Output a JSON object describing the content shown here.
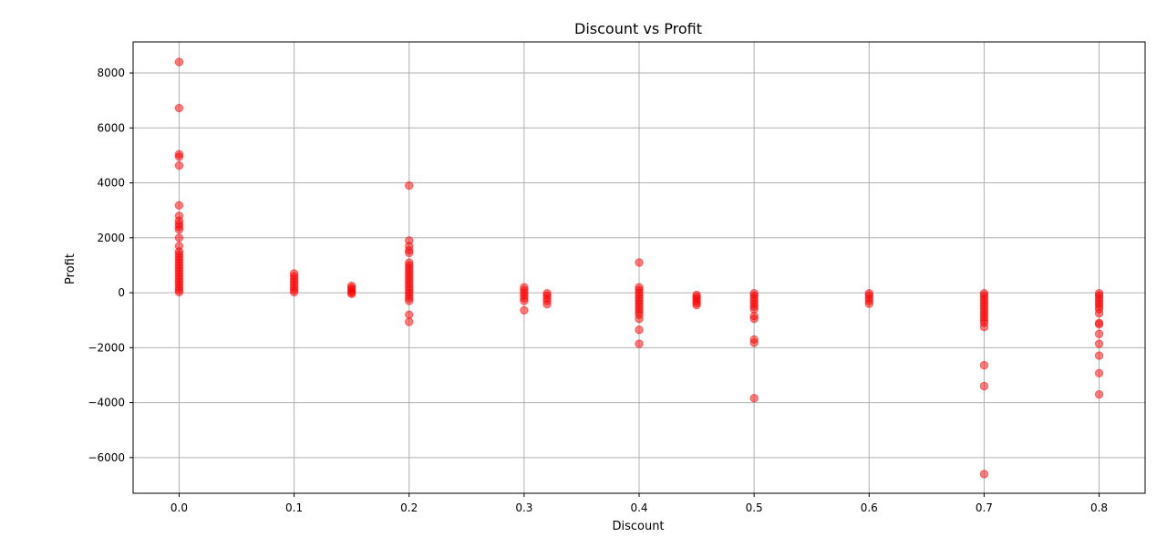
{
  "chart_data": {
    "type": "scatter",
    "title": "Discount vs Profit",
    "xlabel": "Discount",
    "ylabel": "Profit",
    "xlim": [
      -0.04,
      0.84
    ],
    "ylim": [
      -7300,
      9130
    ],
    "x_ticks": [
      0.0,
      0.1,
      0.2,
      0.3,
      0.4,
      0.5,
      0.6,
      0.7,
      0.8
    ],
    "x_tick_labels": [
      "0.0",
      "0.1",
      "0.2",
      "0.3",
      "0.4",
      "0.5",
      "0.6",
      "0.7",
      "0.8"
    ],
    "y_ticks": [
      -6000,
      -4000,
      -2000,
      0,
      2000,
      4000,
      6000,
      8000
    ],
    "y_tick_labels": [
      "−6000",
      "−4000",
      "−2000",
      "0",
      "2000",
      "4000",
      "6000",
      "8000"
    ],
    "grid": true,
    "marker_color": "#ff0000",
    "marker_alpha": 0.5,
    "series": [
      {
        "points": [
          [
            0.0,
            8400
          ],
          [
            0.0,
            6720
          ],
          [
            0.0,
            5040
          ],
          [
            0.0,
            4950
          ],
          [
            0.0,
            4630
          ],
          [
            0.0,
            3180
          ],
          [
            0.0,
            2800
          ],
          [
            0.0,
            2620
          ],
          [
            0.0,
            2500
          ],
          [
            0.0,
            2400
          ],
          [
            0.0,
            2300
          ],
          [
            0.0,
            2000
          ],
          [
            0.0,
            1700
          ],
          [
            0.0,
            1500
          ],
          [
            0.0,
            1400
          ],
          [
            0.0,
            1300
          ],
          [
            0.0,
            1200
          ],
          [
            0.0,
            1100
          ],
          [
            0.0,
            1000
          ],
          [
            0.0,
            900
          ],
          [
            0.0,
            800
          ],
          [
            0.0,
            700
          ],
          [
            0.0,
            600
          ],
          [
            0.0,
            500
          ],
          [
            0.0,
            400
          ],
          [
            0.0,
            300
          ],
          [
            0.0,
            200
          ],
          [
            0.0,
            100
          ],
          [
            0.0,
            20
          ],
          [
            0.1,
            700
          ],
          [
            0.1,
            600
          ],
          [
            0.1,
            500
          ],
          [
            0.1,
            400
          ],
          [
            0.1,
            300
          ],
          [
            0.1,
            200
          ],
          [
            0.1,
            100
          ],
          [
            0.1,
            20
          ],
          [
            0.15,
            250
          ],
          [
            0.15,
            180
          ],
          [
            0.15,
            120
          ],
          [
            0.15,
            60
          ],
          [
            0.15,
            0
          ],
          [
            0.15,
            -40
          ],
          [
            0.2,
            3900
          ],
          [
            0.2,
            1900
          ],
          [
            0.2,
            1700
          ],
          [
            0.2,
            1550
          ],
          [
            0.2,
            1450
          ],
          [
            0.2,
            1100
          ],
          [
            0.2,
            1000
          ],
          [
            0.2,
            900
          ],
          [
            0.2,
            800
          ],
          [
            0.2,
            700
          ],
          [
            0.2,
            600
          ],
          [
            0.2,
            500
          ],
          [
            0.2,
            400
          ],
          [
            0.2,
            300
          ],
          [
            0.2,
            200
          ],
          [
            0.2,
            100
          ],
          [
            0.2,
            0
          ],
          [
            0.2,
            -100
          ],
          [
            0.2,
            -200
          ],
          [
            0.2,
            -300
          ],
          [
            0.2,
            -800
          ],
          [
            0.2,
            -1060
          ],
          [
            0.3,
            200
          ],
          [
            0.3,
            100
          ],
          [
            0.3,
            0
          ],
          [
            0.3,
            -100
          ],
          [
            0.3,
            -200
          ],
          [
            0.3,
            -300
          ],
          [
            0.3,
            -640
          ],
          [
            0.32,
            -20
          ],
          [
            0.32,
            -100
          ],
          [
            0.32,
            -200
          ],
          [
            0.32,
            -300
          ],
          [
            0.32,
            -420
          ],
          [
            0.4,
            1100
          ],
          [
            0.4,
            200
          ],
          [
            0.4,
            100
          ],
          [
            0.4,
            0
          ],
          [
            0.4,
            -100
          ],
          [
            0.4,
            -200
          ],
          [
            0.4,
            -300
          ],
          [
            0.4,
            -400
          ],
          [
            0.4,
            -500
          ],
          [
            0.4,
            -600
          ],
          [
            0.4,
            -700
          ],
          [
            0.4,
            -800
          ],
          [
            0.4,
            -950
          ],
          [
            0.4,
            -1350
          ],
          [
            0.4,
            -1860
          ],
          [
            0.45,
            -80
          ],
          [
            0.45,
            -150
          ],
          [
            0.45,
            -220
          ],
          [
            0.45,
            -300
          ],
          [
            0.45,
            -380
          ],
          [
            0.45,
            -450
          ],
          [
            0.5,
            -20
          ],
          [
            0.5,
            -100
          ],
          [
            0.5,
            -200
          ],
          [
            0.5,
            -300
          ],
          [
            0.5,
            -400
          ],
          [
            0.5,
            -500
          ],
          [
            0.5,
            -600
          ],
          [
            0.5,
            -850
          ],
          [
            0.5,
            -950
          ],
          [
            0.5,
            -1700
          ],
          [
            0.5,
            -1820
          ],
          [
            0.5,
            -3840
          ],
          [
            0.6,
            -20
          ],
          [
            0.6,
            -100
          ],
          [
            0.6,
            -200
          ],
          [
            0.6,
            -300
          ],
          [
            0.6,
            -400
          ],
          [
            0.7,
            -20
          ],
          [
            0.7,
            -100
          ],
          [
            0.7,
            -200
          ],
          [
            0.7,
            -300
          ],
          [
            0.7,
            -400
          ],
          [
            0.7,
            -500
          ],
          [
            0.7,
            -600
          ],
          [
            0.7,
            -700
          ],
          [
            0.7,
            -800
          ],
          [
            0.7,
            -900
          ],
          [
            0.7,
            -1000
          ],
          [
            0.7,
            -1100
          ],
          [
            0.7,
            -1250
          ],
          [
            0.7,
            -2640
          ],
          [
            0.7,
            -3400
          ],
          [
            0.7,
            -6600
          ],
          [
            0.8,
            -20
          ],
          [
            0.8,
            -100
          ],
          [
            0.8,
            -200
          ],
          [
            0.8,
            -300
          ],
          [
            0.8,
            -400
          ],
          [
            0.8,
            -500
          ],
          [
            0.8,
            -600
          ],
          [
            0.8,
            -750
          ],
          [
            0.8,
            -1100
          ],
          [
            0.8,
            -1150
          ],
          [
            0.8,
            -1500
          ],
          [
            0.8,
            -1860
          ],
          [
            0.8,
            -2290
          ],
          [
            0.8,
            -2930
          ],
          [
            0.8,
            -3700
          ]
        ]
      }
    ]
  }
}
